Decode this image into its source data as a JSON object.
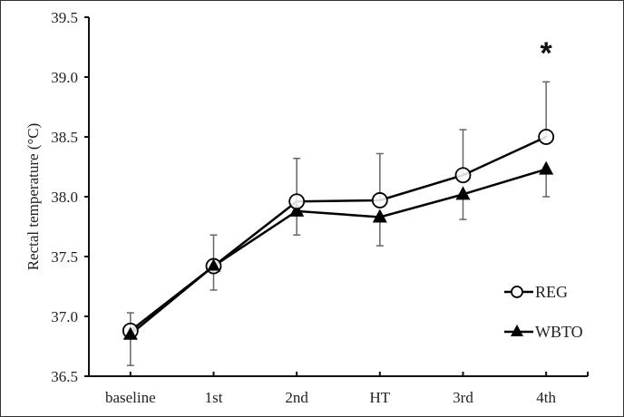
{
  "chart_data": {
    "type": "line",
    "title": "",
    "xlabel": "",
    "ylabel": "Rectal temperature (°C)",
    "ylim": [
      36.5,
      39.5
    ],
    "yticks": [
      "36.5",
      "37.0",
      "37.5",
      "38.0",
      "38.5",
      "39.0",
      "39.5"
    ],
    "ytick_values": [
      36.5,
      37.0,
      37.5,
      38.0,
      38.5,
      39.0,
      39.5
    ],
    "categories": [
      "baseline",
      "1st",
      "2nd",
      "HT",
      "3rd",
      "4th"
    ],
    "grid": false,
    "legend_position": "bottom-right",
    "series": [
      {
        "name": "REG",
        "marker": "open-circle",
        "values": [
          36.88,
          37.42,
          37.96,
          37.97,
          38.18,
          38.5
        ],
        "error_upper": [
          37.03,
          37.68,
          38.32,
          38.36,
          38.56,
          38.96
        ]
      },
      {
        "name": "WBTO",
        "marker": "filled-triangle",
        "values": [
          36.85,
          37.42,
          37.88,
          37.83,
          38.02,
          38.23
        ],
        "error_lower": [
          36.59,
          37.22,
          37.68,
          37.59,
          37.81,
          38.0
        ]
      }
    ],
    "annotations": [
      {
        "text": "*",
        "category": "4th",
        "y": 39.28
      }
    ]
  },
  "colors": {
    "line": "#000000",
    "errorbar": "#666666",
    "axis": "#111111"
  }
}
